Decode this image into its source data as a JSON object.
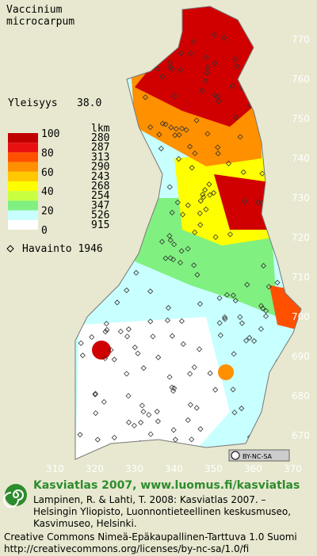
{
  "title": [
    "Vaccinium",
    "microcarpum"
  ],
  "frequency": {
    "label": "Yleisyys",
    "value": "38.0"
  },
  "legend": {
    "scale": [
      "100",
      "80",
      "60",
      "40",
      "20",
      "0"
    ],
    "count_header": "lkm",
    "counts": [
      280,
      287,
      313,
      290,
      243,
      268,
      254,
      347,
      526,
      915
    ],
    "colors": [
      "#c00000",
      "#e81010",
      "#ff5000",
      "#ff9000",
      "#ffc800",
      "#ffff00",
      "#c8ff40",
      "#80f080",
      "#c8ffff",
      "#ffffff"
    ]
  },
  "observation": "Havainto 1946",
  "axes": {
    "y": [
      "770",
      "760",
      "750",
      "740",
      "730",
      "720",
      "710",
      "700",
      "690",
      "680",
      "670"
    ],
    "x": [
      "310",
      "320",
      "330",
      "340",
      "350",
      "360",
      "370"
    ]
  },
  "license_badge": "BY-NC-SA",
  "footer": {
    "site": "Kasviatlas 2007, www.luomus.fi/kasviatlas",
    "citation": [
      "Lampinen, R. & Lahti, T. 2008: Kasviatlas 2007. –",
      "Helsingin Yliopisto, Luonnontieteellinen keskusmuseo,",
      "Kasvimuseo, Helsinki."
    ],
    "license": [
      "Creative Commons Nimeä-Epäkaupallinen-Tarttuva 1.0 Suomi",
      "http://creativecommons.org/licenses/by-nc-sa/1.0/fi"
    ]
  }
}
